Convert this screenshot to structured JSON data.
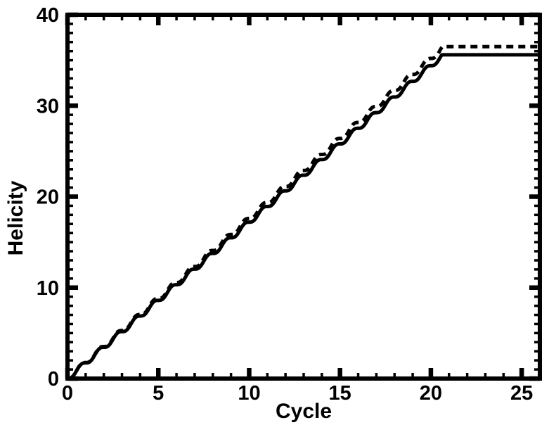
{
  "page": {
    "background": "#ffffff"
  },
  "chart_data": {
    "type": "line",
    "title": "",
    "xlabel": "Cycle",
    "ylabel": "Helicity",
    "xlim": [
      0,
      26
    ],
    "ylim": [
      0,
      40
    ],
    "grid": false,
    "legend": "none",
    "frame": "full box with inward-pointing ticks on all four sides",
    "colors": {
      "lines": "#000000",
      "background": "#ffffff",
      "text": "#000000"
    },
    "x_axis": {
      "major_ticks": [
        0,
        5,
        10,
        15,
        20,
        25
      ],
      "major_tick_labels": [
        "0",
        "5",
        "10",
        "15",
        "20",
        "25"
      ],
      "minor_tick_step": 1
    },
    "y_axis": {
      "major_ticks": [
        0,
        10,
        20,
        30,
        40
      ],
      "major_tick_labels": [
        "0",
        "10",
        "20",
        "30",
        "40"
      ],
      "minor_tick_step": 1
    },
    "modulation_note": "Both curves rise as a smooth staircase (flat near integer cycles, steepest mid-cycle, dH/dcycle proportional to sin^2(pi*cycle)) then saturate to a flat plateau near cycle 21; the dashed curve lies slightly above the solid curve and ends at a slightly higher plateau.",
    "x_integer_cycles": [
      0,
      1,
      2,
      3,
      4,
      5,
      6,
      7,
      8,
      9,
      10,
      11,
      12,
      13,
      14,
      15,
      16,
      17,
      18,
      19,
      20,
      21,
      22,
      23,
      24,
      25,
      26
    ],
    "series": [
      {
        "name": "helicity-solid",
        "line_style": "solid",
        "line_width": 5,
        "slope_per_cycle": 1.72,
        "plateau_value": 35.6,
        "plateau_start_cycle": 20.7,
        "values_at_integer_cycles": [
          0,
          1.72,
          3.44,
          5.16,
          6.88,
          8.6,
          10.32,
          12.04,
          13.76,
          15.48,
          17.2,
          18.92,
          20.64,
          22.36,
          24.08,
          25.8,
          27.52,
          29.24,
          30.96,
          32.68,
          34.4,
          35.6,
          35.6,
          35.6,
          35.6,
          35.6,
          35.6
        ]
      },
      {
        "name": "helicity-dashed",
        "line_style": "dashed",
        "dash_pattern": [
          10,
          7
        ],
        "line_width": 5,
        "slope_per_cycle": 1.76,
        "plateau_value": 36.5,
        "plateau_start_cycle": 20.8,
        "values_at_integer_cycles": [
          0,
          1.76,
          3.52,
          5.28,
          7.04,
          8.8,
          10.56,
          12.32,
          14.08,
          15.84,
          17.6,
          19.36,
          21.12,
          22.88,
          24.64,
          26.4,
          28.16,
          29.92,
          31.68,
          33.44,
          35.2,
          36.5,
          36.5,
          36.5,
          36.5,
          36.5,
          36.5
        ]
      }
    ]
  }
}
